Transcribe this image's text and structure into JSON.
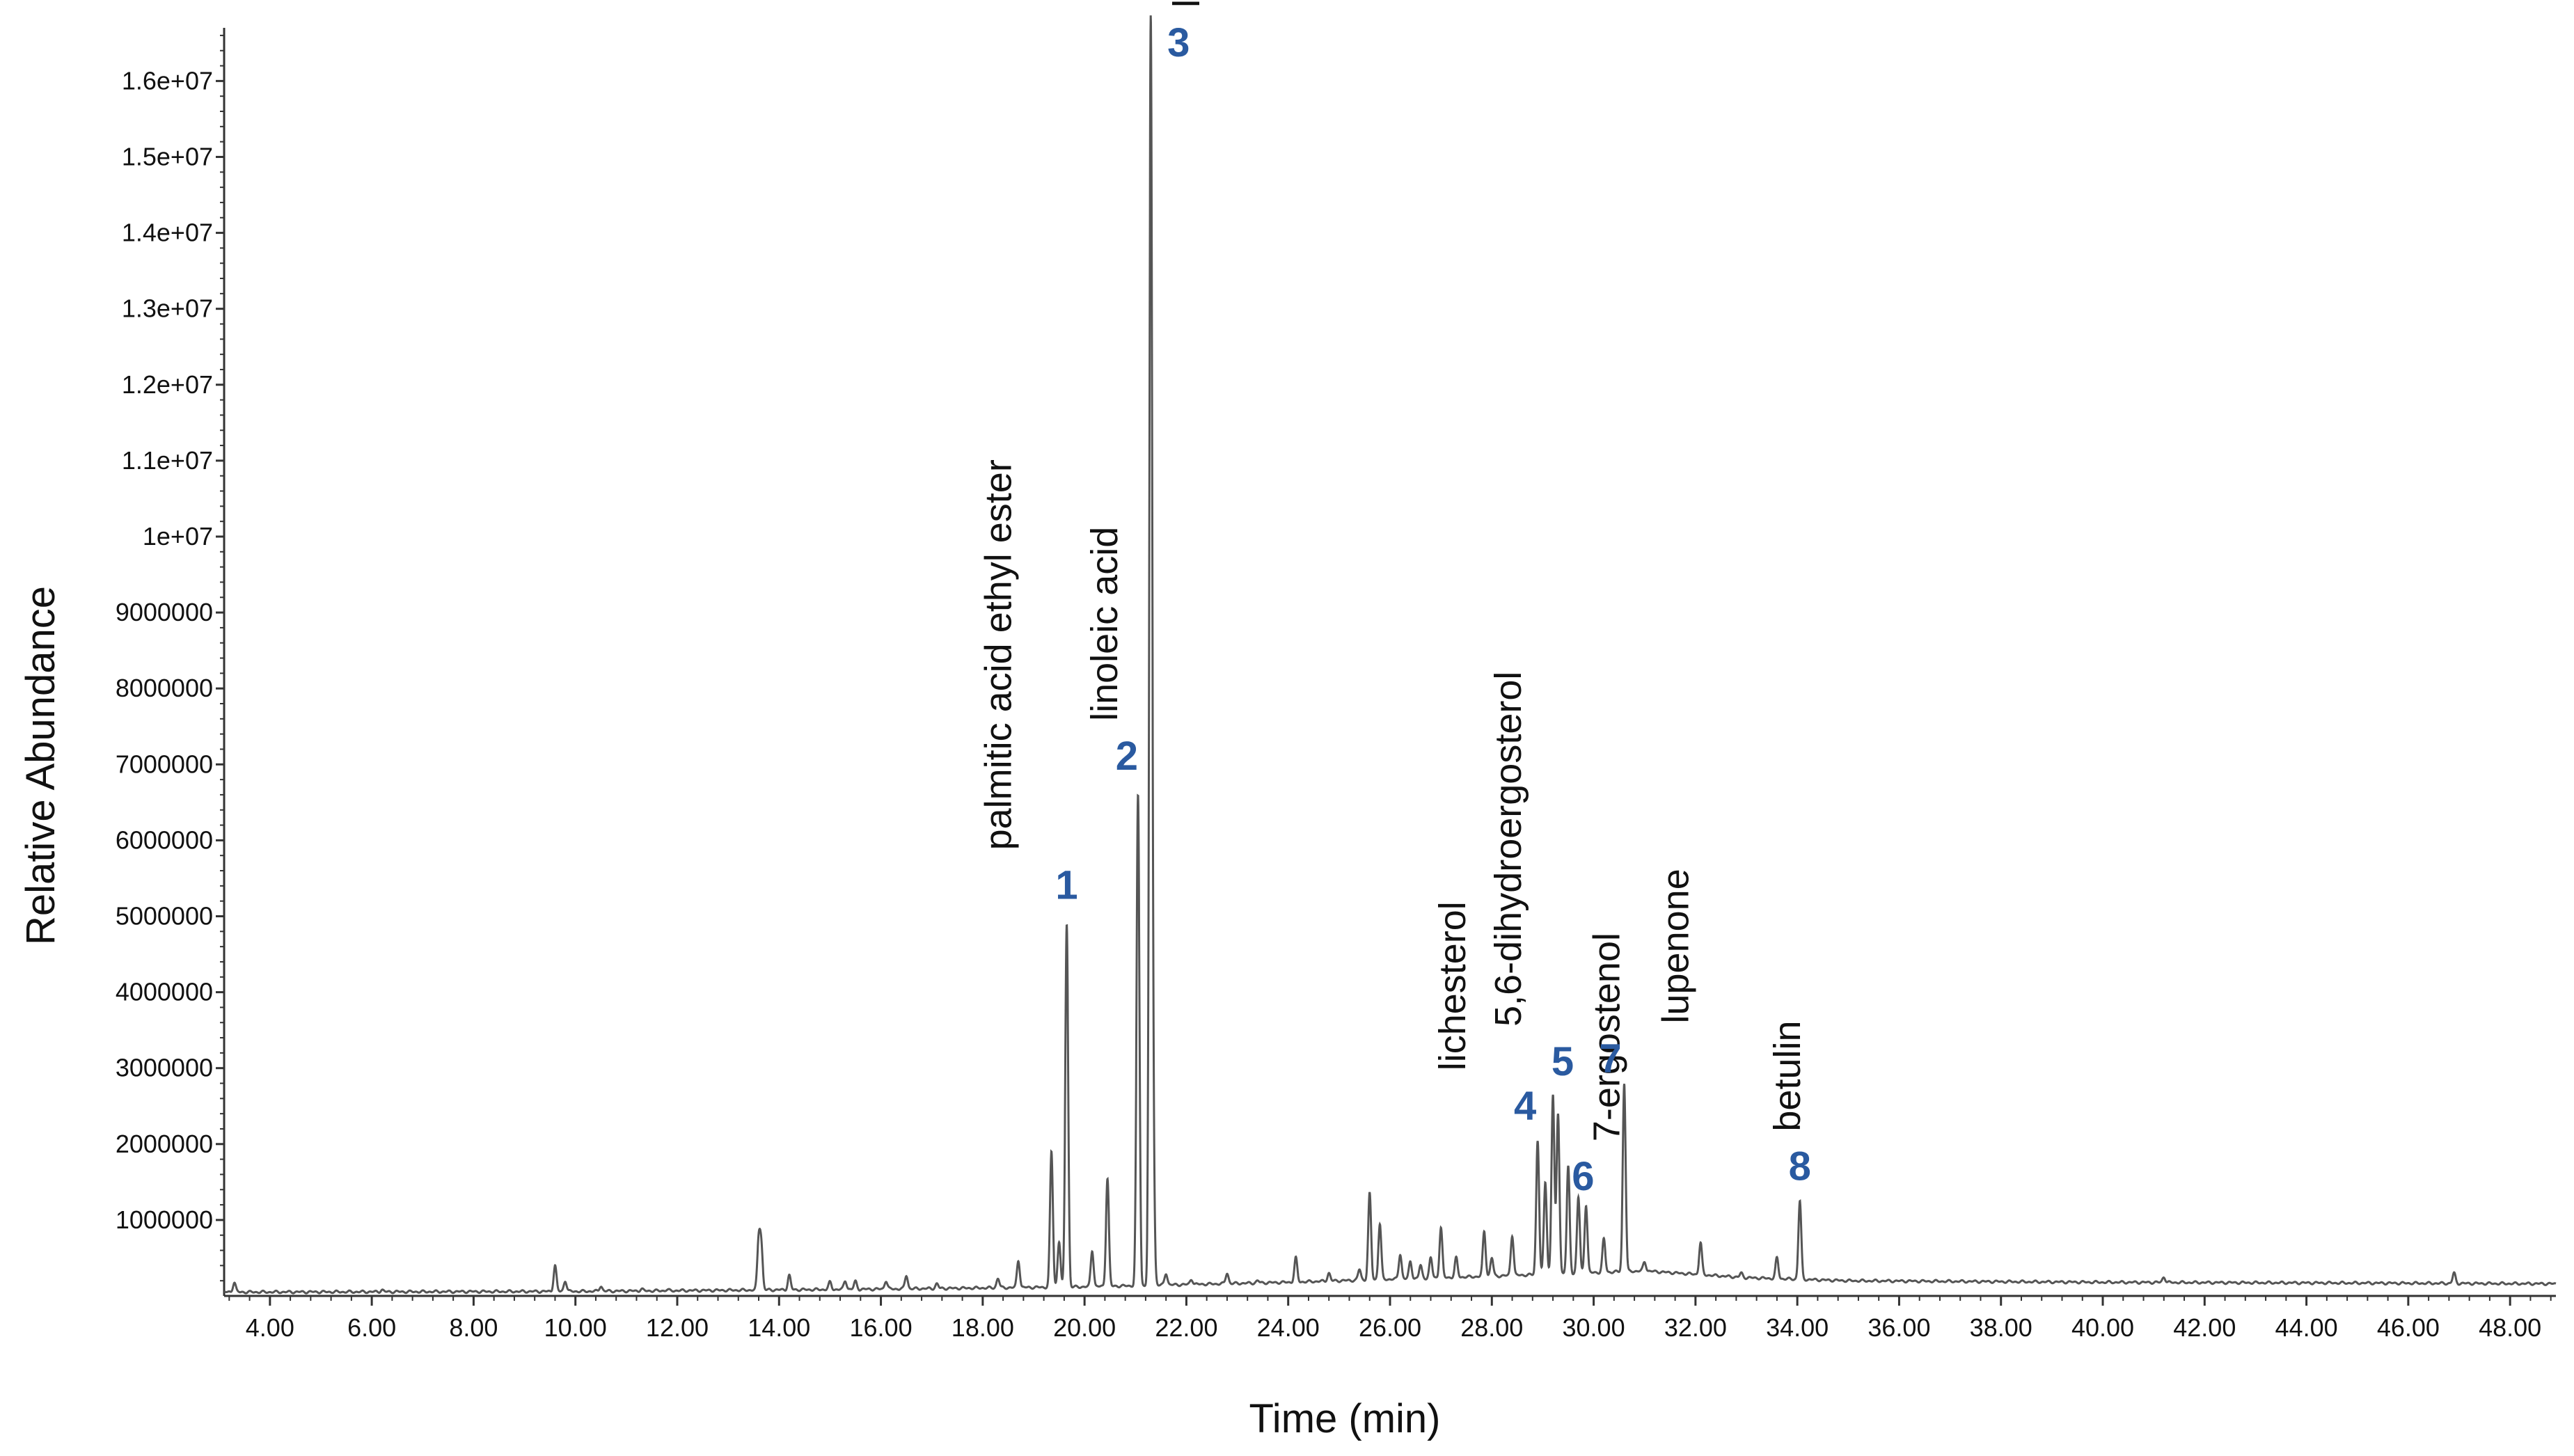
{
  "colors": {
    "trace": "#555555",
    "axis": "#333333",
    "peak_number": "#2a5aa0"
  },
  "chart_data": {
    "type": "line",
    "title": "",
    "xlabel": "Time (min)",
    "ylabel": "Relative Abundance",
    "xlim": [
      3.1,
      48.9
    ],
    "ylim": [
      0,
      16700000
    ],
    "grid": false,
    "xtick_values": [
      4,
      6,
      8,
      10,
      12,
      14,
      16,
      18,
      20,
      22,
      24,
      26,
      28,
      30,
      32,
      34,
      36,
      38,
      40,
      42,
      44,
      46,
      48
    ],
    "xtick_labels": [
      "4.00",
      "6.00",
      "8.00",
      "10.00",
      "12.00",
      "14.00",
      "16.00",
      "18.00",
      "20.00",
      "22.00",
      "24.00",
      "26.00",
      "28.00",
      "30.00",
      "32.00",
      "34.00",
      "36.00",
      "38.00",
      "40.00",
      "42.00",
      "44.00",
      "46.00",
      "48.00"
    ],
    "ytick_values": [
      1000000,
      2000000,
      3000000,
      4000000,
      5000000,
      6000000,
      7000000,
      8000000,
      9000000,
      10000000,
      11000000,
      12000000,
      13000000,
      14000000,
      15000000,
      16000000
    ],
    "ytick_labels": [
      "1000000",
      "2000000",
      "3000000",
      "4000000",
      "5000000",
      "6000000",
      "7000000",
      "8000000",
      "9000000",
      "1e+07",
      "1.1e+07",
      "1.2e+07",
      "1.3e+07",
      "1.4e+07",
      "1.5e+07",
      "1.6e+07"
    ],
    "baseline": [
      [
        3.1,
        50000
      ],
      [
        10,
        60000
      ],
      [
        16,
        90000
      ],
      [
        20,
        120000
      ],
      [
        24,
        180000
      ],
      [
        28,
        260000
      ],
      [
        31,
        330000
      ],
      [
        33,
        240000
      ],
      [
        35,
        200000
      ],
      [
        40,
        180000
      ],
      [
        45,
        170000
      ],
      [
        48.9,
        160000
      ]
    ],
    "minor_peaks": [
      [
        3.3,
        180000
      ],
      [
        6.2,
        80000
      ],
      [
        9.6,
        400000
      ],
      [
        9.8,
        200000
      ],
      [
        10.5,
        130000
      ],
      [
        11.3,
        90000
      ],
      [
        11.8,
        80000
      ],
      [
        12.6,
        70000
      ],
      [
        13.6,
        720000
      ],
      [
        13.65,
        650000
      ],
      [
        14.2,
        270000
      ],
      [
        15.0,
        180000
      ],
      [
        15.3,
        200000
      ],
      [
        15.5,
        190000
      ],
      [
        16.1,
        200000
      ],
      [
        16.5,
        270000
      ],
      [
        17.1,
        160000
      ],
      [
        18.3,
        230000
      ],
      [
        18.7,
        470000
      ],
      [
        19.35,
        1900000
      ],
      [
        19.5,
        720000
      ],
      [
        20.15,
        600000
      ],
      [
        20.45,
        1550000
      ],
      [
        21.35,
        1400000
      ],
      [
        21.6,
        300000
      ],
      [
        22.1,
        220000
      ],
      [
        22.8,
        300000
      ],
      [
        23.4,
        200000
      ],
      [
        24.15,
        500000
      ],
      [
        24.8,
        300000
      ],
      [
        25.4,
        350000
      ],
      [
        25.6,
        1350000
      ],
      [
        25.8,
        950000
      ],
      [
        26.2,
        550000
      ],
      [
        26.4,
        450000
      ],
      [
        26.6,
        400000
      ],
      [
        26.8,
        500000
      ],
      [
        27.0,
        900000
      ],
      [
        27.3,
        500000
      ],
      [
        27.85,
        850000
      ],
      [
        28.0,
        500000
      ],
      [
        28.4,
        800000
      ],
      [
        29.05,
        1500000
      ],
      [
        29.5,
        1700000
      ],
      [
        29.7,
        1300000
      ],
      [
        29.85,
        1200000
      ],
      [
        30.2,
        750000
      ],
      [
        31.0,
        450000
      ],
      [
        32.1,
        700000
      ],
      [
        32.9,
        300000
      ],
      [
        33.6,
        500000
      ],
      [
        41.2,
        250000
      ],
      [
        46.9,
        300000
      ]
    ],
    "labeled_peaks": [
      {
        "number": "1",
        "name": "palmitic acid ethyl ester",
        "x": 19.65,
        "y": 4900000
      },
      {
        "number": "2",
        "name": "linoleic acid",
        "x": 21.05,
        "y": 6600000
      },
      {
        "number": "3",
        "name": "linoleic acid ethyl ester",
        "x": 21.3,
        "y": 16600000
      },
      {
        "number": "4",
        "name": "lichesterol",
        "x": 28.9,
        "y": 2050000
      },
      {
        "number": "5",
        "name": "5,6-dihydroergosterol",
        "x": 29.2,
        "y": 2650000
      },
      {
        "number": "6",
        "name": "7-ergostenol",
        "x": 29.3,
        "y": 2400000
      },
      {
        "number": "7",
        "name": "lupenone",
        "x": 30.6,
        "y": 2800000
      },
      {
        "number": "8",
        "name": "betulin",
        "x": 34.05,
        "y": 1250000
      }
    ]
  }
}
